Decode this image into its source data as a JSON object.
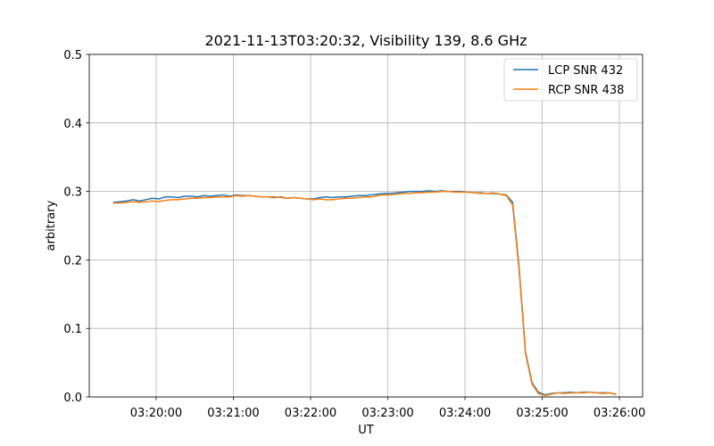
{
  "chart_data": {
    "type": "line",
    "title": "2021-11-13T03:20:32, Visibility 139, 8.6 GHz",
    "xlabel": "UT",
    "ylabel": "arbitrary",
    "xlim": [
      "03:19:08",
      "03:26:18"
    ],
    "ylim": [
      0,
      0.5
    ],
    "xticks": [
      "03:20:00",
      "03:21:00",
      "03:22:00",
      "03:23:00",
      "03:24:00",
      "03:25:00",
      "03:26:00"
    ],
    "yticks": [
      "0.0",
      "0.1",
      "0.2",
      "0.3",
      "0.4",
      "0.5"
    ],
    "grid": true,
    "legend": "top-right",
    "x": [
      "03:19:27",
      "03:19:32",
      "03:19:37",
      "03:19:42",
      "03:19:47",
      "03:19:52",
      "03:19:57",
      "03:20:02",
      "03:20:07",
      "03:20:12",
      "03:20:17",
      "03:20:22",
      "03:20:27",
      "03:20:32",
      "03:20:37",
      "03:20:42",
      "03:20:47",
      "03:20:52",
      "03:20:57",
      "03:21:02",
      "03:21:07",
      "03:21:12",
      "03:21:17",
      "03:21:22",
      "03:21:27",
      "03:21:32",
      "03:21:37",
      "03:21:42",
      "03:21:47",
      "03:21:52",
      "03:21:57",
      "03:22:02",
      "03:22:07",
      "03:22:12",
      "03:22:17",
      "03:22:22",
      "03:22:27",
      "03:22:32",
      "03:22:37",
      "03:22:42",
      "03:22:47",
      "03:22:52",
      "03:22:57",
      "03:23:02",
      "03:23:07",
      "03:23:12",
      "03:23:17",
      "03:23:22",
      "03:23:27",
      "03:23:32",
      "03:23:37",
      "03:23:42",
      "03:23:47",
      "03:23:52",
      "03:23:57",
      "03:24:02",
      "03:24:07",
      "03:24:12",
      "03:24:17",
      "03:24:22",
      "03:24:27",
      "03:24:32",
      "03:24:37",
      "03:24:42",
      "03:24:47",
      "03:24:52",
      "03:24:57",
      "03:25:02",
      "03:25:07",
      "03:25:12",
      "03:25:17",
      "03:25:22",
      "03:25:27",
      "03:25:32",
      "03:25:37",
      "03:25:42",
      "03:25:47",
      "03:25:52",
      "03:25:57"
    ],
    "series": [
      {
        "name": "LCP SNR 432",
        "color": "#1f77b4",
        "values": [
          0.284,
          0.285,
          0.286,
          0.288,
          0.286,
          0.288,
          0.29,
          0.289,
          0.292,
          0.292,
          0.291,
          0.293,
          0.293,
          0.292,
          0.294,
          0.293,
          0.294,
          0.295,
          0.293,
          0.295,
          0.294,
          0.294,
          0.293,
          0.292,
          0.292,
          0.291,
          0.292,
          0.29,
          0.291,
          0.29,
          0.289,
          0.289,
          0.291,
          0.292,
          0.291,
          0.292,
          0.292,
          0.293,
          0.294,
          0.294,
          0.295,
          0.296,
          0.297,
          0.297,
          0.298,
          0.299,
          0.3,
          0.3,
          0.3,
          0.301,
          0.3,
          0.301,
          0.3,
          0.3,
          0.3,
          0.299,
          0.298,
          0.298,
          0.297,
          0.297,
          0.296,
          0.295,
          0.284,
          0.19,
          0.066,
          0.021,
          0.007,
          0.003,
          0.005,
          0.006,
          0.006,
          0.007,
          0.006,
          0.007,
          0.007,
          0.006,
          0.006,
          0.006,
          0.004
        ]
      },
      {
        "name": "RCP SNR 438",
        "color": "#ff7f0e",
        "values": [
          0.283,
          0.283,
          0.284,
          0.285,
          0.284,
          0.285,
          0.286,
          0.285,
          0.287,
          0.288,
          0.288,
          0.289,
          0.29,
          0.29,
          0.291,
          0.291,
          0.292,
          0.292,
          0.292,
          0.294,
          0.293,
          0.294,
          0.293,
          0.292,
          0.292,
          0.292,
          0.291,
          0.29,
          0.291,
          0.29,
          0.289,
          0.288,
          0.289,
          0.288,
          0.288,
          0.289,
          0.29,
          0.29,
          0.291,
          0.292,
          0.292,
          0.294,
          0.295,
          0.295,
          0.296,
          0.297,
          0.297,
          0.298,
          0.298,
          0.299,
          0.299,
          0.3,
          0.3,
          0.299,
          0.299,
          0.299,
          0.298,
          0.297,
          0.297,
          0.298,
          0.296,
          0.294,
          0.28,
          0.185,
          0.063,
          0.019,
          0.005,
          0.002,
          0.004,
          0.006,
          0.005,
          0.006,
          0.006,
          0.006,
          0.007,
          0.006,
          0.005,
          0.006,
          0.004
        ]
      }
    ]
  }
}
